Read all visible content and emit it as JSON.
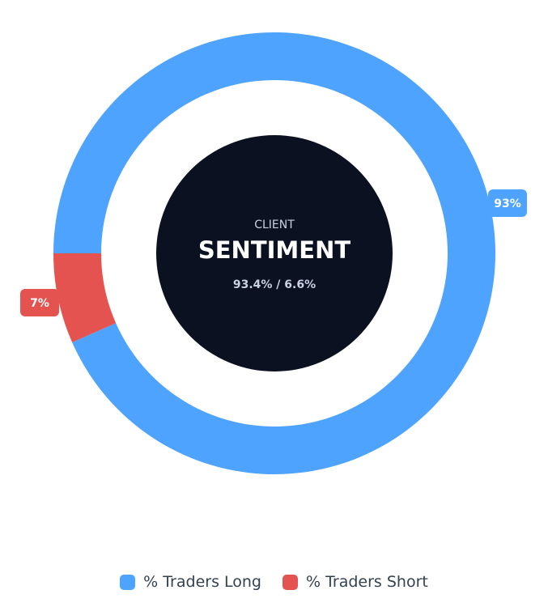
{
  "chart_data": {
    "type": "pie",
    "variant": "donut",
    "categories": [
      "% Traders Long",
      "% Traders Short"
    ],
    "values": [
      93.4,
      6.6
    ],
    "data_labels": [
      "93%",
      "7%"
    ],
    "colors": [
      "#4da3fe",
      "#e55350"
    ],
    "legend": "bottom-center",
    "center": {
      "kicker": "CLIENT",
      "title": "SENTIMENT",
      "subtitle": "93.4% / 6.6%",
      "background": "#0b1120"
    }
  }
}
